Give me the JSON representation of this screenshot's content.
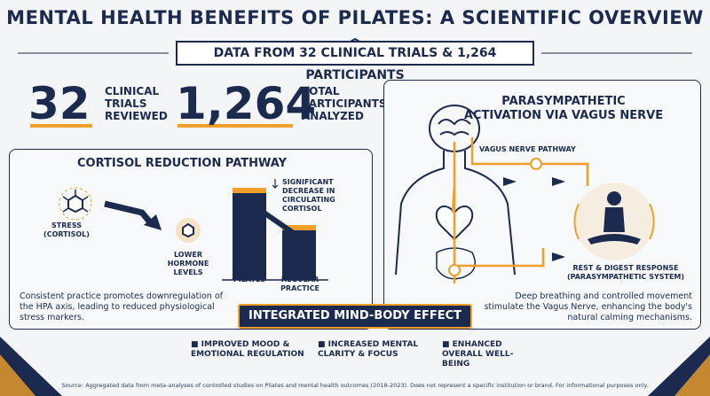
{
  "header": {
    "title": "MENTAL HEALTH BENEFITS OF PILATES: A SCIENTIFIC OVERVIEW",
    "subtitle": "DATA FROM 32 CLINICAL TRIALS & 1,264 PARTICIPANTS"
  },
  "stats": [
    {
      "number": "32",
      "label": "CLINICAL TRIALS REVIEWED"
    },
    {
      "number": "1,264",
      "label": "TOTAL PARTICIPANTS ANALYZED"
    }
  ],
  "cortisol_panel": {
    "title": "CORTISOL REDUCTION PATHWAY",
    "stress_label": "STRESS (CORTISOL)",
    "lower_label": "LOWER HORMONE LEVELS",
    "note": "SIGNIFICANT DECREASE IN CIRCULATING CORTISOL",
    "bar_labels": [
      "BEFORE PILATES",
      "AFTER REGULAR PRACTICE"
    ],
    "description": "Consistent practice promotes downregulation of the HPA axis, leading to reduced physiological stress markers."
  },
  "vagus_panel": {
    "title": "PARASYMPATHETIC ACTIVATION VIA VAGUS NERVE",
    "pathway_label": "VAGUS NERVE PATHWAY",
    "response_label": "REST & DIGEST RESPONSE (PARASYMPATHETIC SYSTEM)",
    "description": "Deep breathing and controlled movement stimulate the Vagus Nerve, enhancing the body's natural calming mechanisms."
  },
  "banner": "INTEGRATED MIND-BODY EFFECT",
  "benefits": [
    "IMPROVED MOOD & EMOTIONAL REGULATION",
    "INCREASED MENTAL CLARITY & FOCUS",
    "ENHANCED OVERALL WELL-BEING"
  ],
  "footer": "Source: Aggregated data from meta-analyses of controlled studies on Pilates and mental health outcomes (2018-2023). Does not represent a specific institution or brand. For informational purposes only."
}
